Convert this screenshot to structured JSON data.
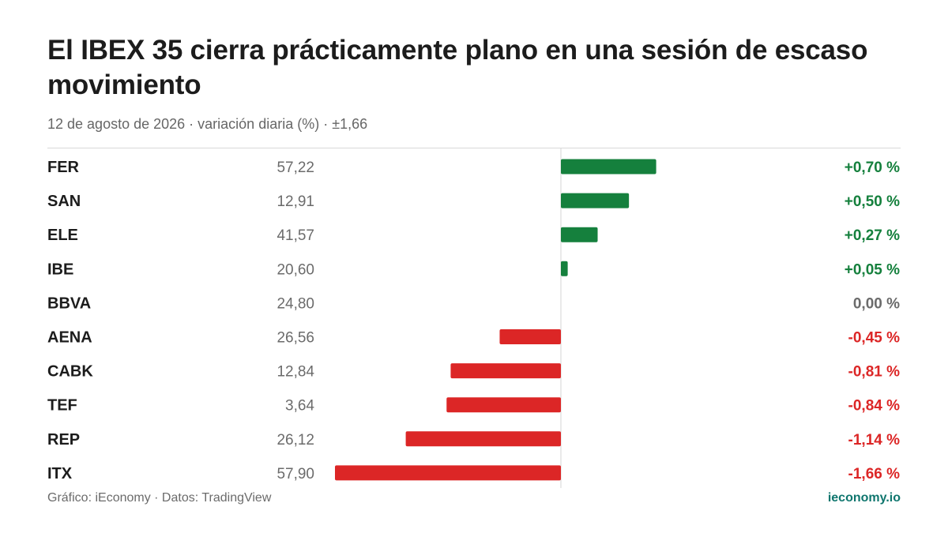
{
  "title": "El IBEX 35 cierra prácticamente plano en una sesión de escaso movimiento",
  "subtitle": "12 de agosto de 2026 · variación diaria (%) · ±1,66",
  "footer": {
    "source": "Gráfico: iEconomy · Datos: TradingView",
    "brand": "ieconomy.io"
  },
  "colors": {
    "positive": "#15803d",
    "negative": "#dc2626",
    "neutral": "#6b6b6b",
    "brand": "#0f766e"
  },
  "chart_data": {
    "type": "bar",
    "orientation": "horizontal",
    "title": "El IBEX 35 cierra prácticamente plano en una sesión de escaso movimiento",
    "subtitle": "12 de agosto de 2026 · variación diaria (%) · ±1,66",
    "categories": [
      "FER",
      "SAN",
      "ELE",
      "IBE",
      "BBVA",
      "AENA",
      "CABK",
      "TEF",
      "REP",
      "ITX"
    ],
    "prices": [
      57.22,
      12.91,
      41.57,
      20.6,
      24.8,
      26.56,
      12.84,
      3.64,
      26.12,
      57.9
    ],
    "price_labels": [
      "57,22",
      "12,91",
      "41,57",
      "20,60",
      "24,80",
      "26,56",
      "12,84",
      "3,64",
      "26,12",
      "57,90"
    ],
    "values": [
      0.7,
      0.5,
      0.27,
      0.05,
      0.0,
      -0.45,
      -0.81,
      -0.84,
      -1.14,
      -1.66
    ],
    "value_labels": [
      "+0,70 %",
      "+0,50 %",
      "+0,27 %",
      "+0,05 %",
      "0,00 %",
      "-0,45 %",
      "-0,81 %",
      "-0,84 %",
      "-1,14 %",
      "-1,66 %"
    ],
    "xlim": [
      -1.66,
      1.66
    ],
    "grid": false
  }
}
